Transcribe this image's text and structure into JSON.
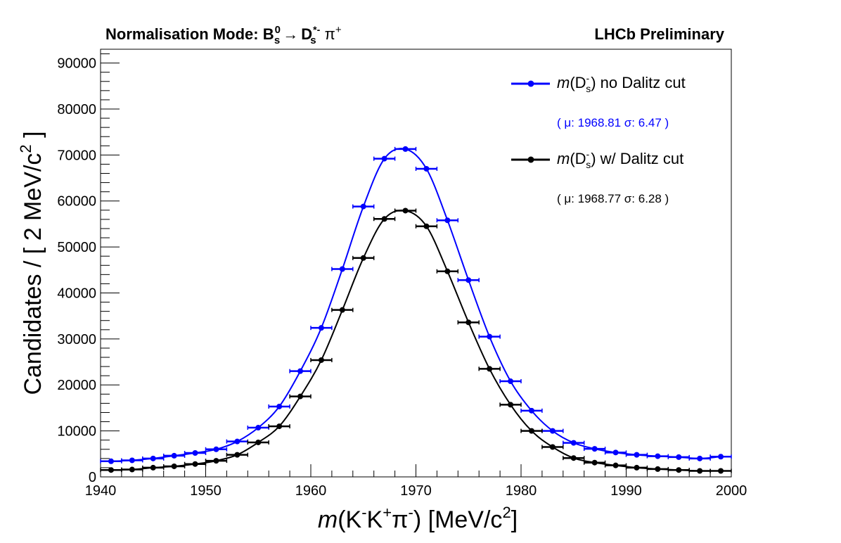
{
  "header": {
    "title_prefix": "Normalisation Mode: ",
    "title_B": "B",
    "title_B_sub": "s",
    "title_B_sup": "0",
    "title_arrow": "→",
    "title_D": "D",
    "title_D_sub": "s",
    "title_D_sup": "*-",
    "title_pi": "π",
    "title_pi_sup": "+",
    "experiment": "LHCb Preliminary"
  },
  "axes": {
    "xlabel_m": "m",
    "xlabel_rest": "(K",
    "xlabel_Kminus_sup": "-",
    "xlabel_K": "K",
    "xlabel_Kplus_sup": "+",
    "xlabel_pi": "π",
    "xlabel_pi_sup": "-",
    "xlabel_unit": ") [MeV/c",
    "xlabel_unit_sup": "2",
    "xlabel_close": "]",
    "ylabel_main": "Candidates / [ 2 MeV/c",
    "ylabel_sup": "2",
    "ylabel_close": " ]"
  },
  "legend": {
    "entry1_m": "m",
    "entry1_D": "(D",
    "entry1_sup": "-",
    "entry1_sub": "s",
    "entry1_rest": ") no Dalitz cut",
    "entry1_fit": "( μ: 1968.81 σ: 6.47 )",
    "entry2_m": "m",
    "entry2_D": "(D",
    "entry2_sup": "-",
    "entry2_sub": "s",
    "entry2_rest": ") w/ Dalitz cut",
    "entry2_fit": "( μ: 1968.77  σ: 6.28 )"
  },
  "colors": {
    "series_no_cut": "#0000ff",
    "series_with_cut": "#000000"
  },
  "chart_data": {
    "type": "scatter",
    "xlim": [
      1940,
      2000
    ],
    "ylim": [
      0,
      93000
    ],
    "x_ticks": [
      1940,
      1950,
      1960,
      1970,
      1980,
      1990,
      2000
    ],
    "y_ticks": [
      0,
      10000,
      20000,
      30000,
      40000,
      50000,
      60000,
      70000,
      80000,
      90000
    ],
    "bin_width": 2,
    "series": [
      {
        "name": "m(D_s^-) no Dalitz cut",
        "x": [
          1941,
          1943,
          1945,
          1947,
          1949,
          1951,
          1953,
          1955,
          1957,
          1959,
          1961,
          1963,
          1965,
          1967,
          1969,
          1971,
          1973,
          1975,
          1977,
          1979,
          1981,
          1983,
          1985,
          1987,
          1989,
          1991,
          1993,
          1995,
          1997,
          1999
        ],
        "y": [
          3400,
          3600,
          4000,
          4600,
          5200,
          6000,
          7700,
          10700,
          15300,
          23000,
          32400,
          45200,
          58800,
          69200,
          71300,
          67000,
          55800,
          42800,
          30500,
          20800,
          14400,
          10000,
          7400,
          6100,
          5300,
          4800,
          4500,
          4300,
          4000,
          4400
        ],
        "fit": {
          "mu": 1968.81,
          "sigma": 6.47
        }
      },
      {
        "name": "m(D_s^-) w/ Dalitz cut",
        "x": [
          1941,
          1943,
          1945,
          1947,
          1949,
          1951,
          1953,
          1955,
          1957,
          1959,
          1961,
          1963,
          1965,
          1967,
          1969,
          1971,
          1973,
          1975,
          1977,
          1979,
          1981,
          1983,
          1985,
          1987,
          1989,
          1991,
          1993,
          1995,
          1997,
          1999
        ],
        "y": [
          1500,
          1600,
          2000,
          2300,
          2800,
          3500,
          4800,
          7500,
          11000,
          17500,
          25400,
          36300,
          47600,
          56100,
          57900,
          54500,
          44700,
          33600,
          23500,
          15700,
          10000,
          6500,
          4100,
          3100,
          2500,
          2000,
          1700,
          1500,
          1300,
          1300
        ],
        "fit": {
          "mu": 1968.77,
          "sigma": 6.28
        }
      }
    ]
  }
}
